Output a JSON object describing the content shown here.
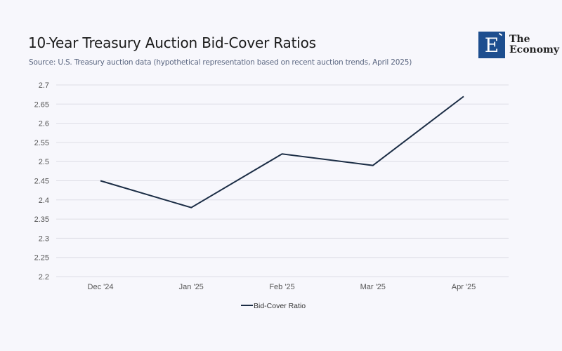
{
  "header": {
    "title": "10-Year Treasury Auction Bid-Cover Ratios",
    "subtitle": "Source: U.S. Treasury auction data (hypothetical representation based on recent auction trends, April 2025)"
  },
  "logo": {
    "mark": "E",
    "line1": "The",
    "line2": "Economy",
    "color": "#1d4e8f"
  },
  "chart_data": {
    "type": "line",
    "title": "10-Year Treasury Auction Bid-Cover Ratios",
    "xlabel": "",
    "ylabel": "",
    "categories": [
      "Dec '24",
      "Jan '25",
      "Feb '25",
      "Mar '25",
      "Apr '25"
    ],
    "series": [
      {
        "name": "Bid-Cover Ratio",
        "values": [
          2.45,
          2.38,
          2.52,
          2.49,
          2.67
        ],
        "color": "#1b2d45"
      }
    ],
    "ylim": [
      2.2,
      2.7
    ],
    "yticks": [
      "2.2",
      "2.25",
      "2.3",
      "2.35",
      "2.4",
      "2.45",
      "2.5",
      "2.55",
      "2.6",
      "2.65",
      "2.7"
    ],
    "grid": true,
    "legend": "bottom-center"
  }
}
